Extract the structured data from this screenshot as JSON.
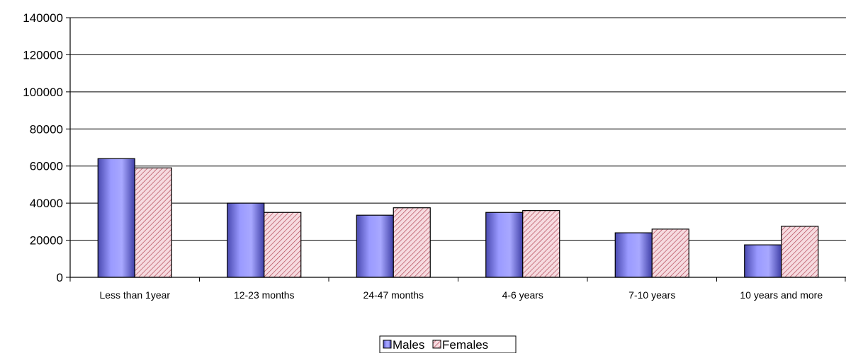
{
  "chart_data": {
    "type": "bar",
    "title": "",
    "xlabel": "",
    "ylabel": "",
    "categories": [
      "Less than 1year",
      "12-23 months",
      "24-47 months",
      "4-6 years",
      "7-10 years",
      "10 years and more"
    ],
    "series": [
      {
        "name": "Males",
        "values": [
          64000,
          40000,
          33500,
          35000,
          24000,
          17500
        ],
        "color": "#8080ff",
        "pattern": "gradient"
      },
      {
        "name": "Females",
        "values": [
          59000,
          35000,
          37500,
          36000,
          26000,
          27500
        ],
        "color": "#f0c8d0",
        "pattern": "diagonal-hatch",
        "hatch_color": "#b04050"
      }
    ],
    "ylim": [
      0,
      140000
    ],
    "yticks": [
      "0",
      "20000",
      "40000",
      "60000",
      "80000",
      "100000",
      "120000",
      "140000"
    ],
    "grid": true,
    "legend_position": "bottom-center"
  }
}
